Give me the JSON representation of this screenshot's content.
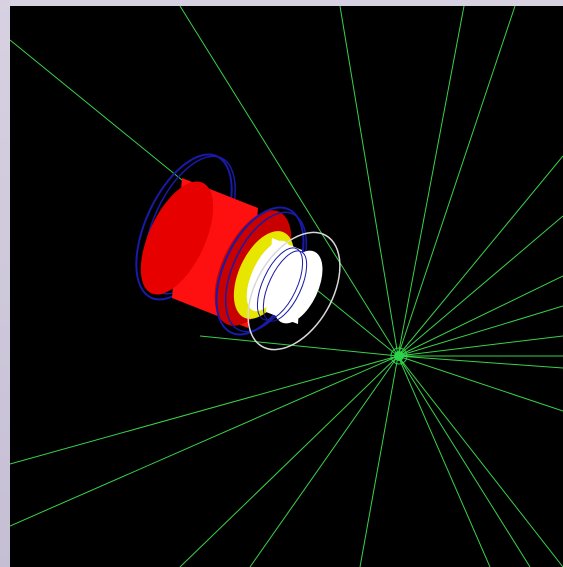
{
  "viewer": {
    "background_color": "#000000",
    "frame_color": "#c9c3d6"
  },
  "scene": {
    "track_color": "#39d14a",
    "detector_outer_color": "#ff1010",
    "detector_outer_shadow": "#c80000",
    "detector_mid_color": "#e6e600",
    "detector_inner_color": "#ffffff",
    "coil_color": "#1a1aa8",
    "endcap_ring_color": "#d8d8d8",
    "vertex_color": "#2bd44a",
    "icons": [
      "event-display-3d-view",
      "interaction-vertex",
      "particle-tracks",
      "detector-geometry"
    ]
  }
}
